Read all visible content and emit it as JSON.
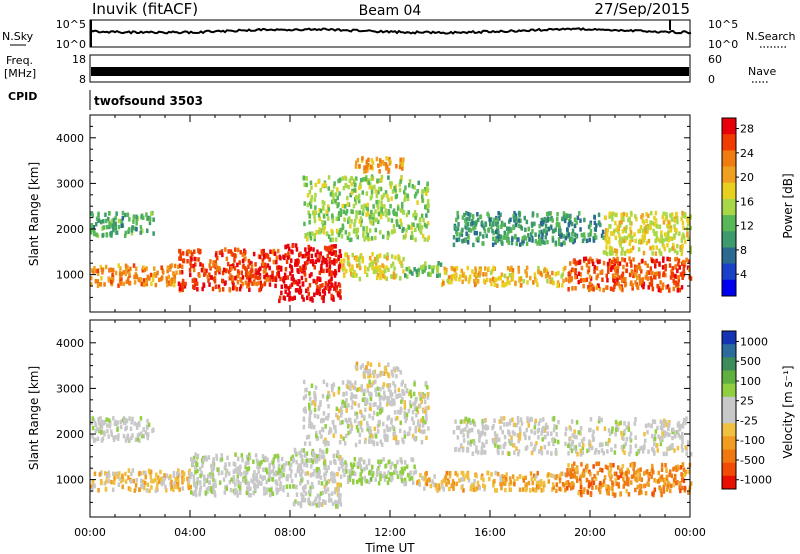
{
  "header": {
    "station": "Inuvik (fitACF)",
    "beam": "Beam 04",
    "date": "27/Sep/2015"
  },
  "panels": {
    "nsky": {
      "left_label": "N.Sky",
      "right_label": "N.Search",
      "left_ticks": [
        "10^5",
        "10^0"
      ],
      "right_ticks": [
        "10^5",
        "10^0"
      ]
    },
    "freq": {
      "left_label": "Freq.",
      "left_unit": "[MHz]",
      "right_label": "Nave",
      "left_ticks": [
        "18",
        "8"
      ],
      "right_ticks": [
        "60",
        "0"
      ]
    },
    "cpid": {
      "label": "CPID",
      "value": "twofsound 3503"
    }
  },
  "xaxis": {
    "label": "Time UT",
    "ticks": [
      "00:00",
      "04:00",
      "08:00",
      "12:00",
      "16:00",
      "20:00",
      "00:00"
    ]
  },
  "colorbars": {
    "power": {
      "title": "Power [dB]",
      "labels": [
        "28",
        "24",
        "20",
        "16",
        "12",
        "8",
        "4"
      ],
      "colors": [
        "#e8000b",
        "#f03c00",
        "#f07c10",
        "#f0a020",
        "#e8d020",
        "#a8d848",
        "#58b858",
        "#3c9a6c",
        "#2a6a90",
        "#1840c8",
        "#0000f0"
      ]
    },
    "velocity": {
      "title": "Velocity [m s⁻¹]",
      "labels": [
        "1000",
        "500",
        "100",
        "25",
        "-25",
        "-100",
        "-500",
        "-1000"
      ],
      "colors": [
        "#1434b4",
        "#2c6c9c",
        "#3c8c5c",
        "#60b040",
        "#90d040",
        "#c8c8c8",
        "#c8c8c8",
        "#f0c040",
        "#f09c20",
        "#f07810",
        "#f04c08",
        "#e81000"
      ]
    }
  },
  "chart_data": [
    {
      "type": "heatmap",
      "parameter": "power",
      "ylabel": "Slant Range [km]",
      "xlabel": "Time UT",
      "xlim": [
        "00:00",
        "24:00"
      ],
      "ylim": [
        180,
        4500
      ],
      "yticks": [
        1000,
        2000,
        3000,
        4000
      ],
      "zlim": [
        0,
        30
      ],
      "regions": [
        {
          "t0": 0.0,
          "t1": 3.5,
          "r0": 800,
          "r1": 1250,
          "value": 22
        },
        {
          "t0": 3.5,
          "t1": 7.5,
          "r0": 700,
          "r1": 1600,
          "value": 26
        },
        {
          "t0": 7.5,
          "t1": 10.0,
          "r0": 450,
          "r1": 1700,
          "value": 29
        },
        {
          "t0": 10.0,
          "t1": 12.5,
          "r0": 950,
          "r1": 1500,
          "value": 17
        },
        {
          "t0": 12.5,
          "t1": 14.0,
          "r0": 1000,
          "r1": 1300,
          "value": 13
        },
        {
          "t0": 14.0,
          "t1": 19.0,
          "r0": 800,
          "r1": 1200,
          "value": 19
        },
        {
          "t0": 19.0,
          "t1": 24.0,
          "r0": 700,
          "r1": 1400,
          "value": 25
        },
        {
          "t0": 0.0,
          "t1": 2.5,
          "r0": 1900,
          "r1": 2400,
          "value": 11
        },
        {
          "t0": 8.5,
          "t1": 13.5,
          "r0": 1800,
          "r1": 3200,
          "value": 14
        },
        {
          "t0": 10.5,
          "t1": 12.5,
          "r0": 3300,
          "r1": 3600,
          "value": 21
        },
        {
          "t0": 14.5,
          "t1": 20.5,
          "r0": 1700,
          "r1": 2400,
          "value": 10
        },
        {
          "t0": 20.5,
          "t1": 24.0,
          "r0": 1500,
          "r1": 2400,
          "value": 17
        }
      ]
    },
    {
      "type": "heatmap",
      "parameter": "velocity",
      "ylabel": "Slant Range [km]",
      "xlabel": "Time UT",
      "xlim": [
        "00:00",
        "24:00"
      ],
      "ylim": [
        180,
        4500
      ],
      "yticks": [
        1000,
        2000,
        3000,
        4000
      ],
      "zlim": [
        -1200,
        1200
      ],
      "regions": [
        {
          "t0": 0.0,
          "t1": 4.0,
          "r0": 800,
          "r1": 1250,
          "value": -300
        },
        {
          "t0": 4.0,
          "t1": 8.0,
          "r0": 700,
          "r1": 1600,
          "value": 80
        },
        {
          "t0": 8.0,
          "t1": 10.0,
          "r0": 450,
          "r1": 1700,
          "value": 10
        },
        {
          "t0": 10.0,
          "t1": 13.0,
          "r0": 950,
          "r1": 1500,
          "value": 150
        },
        {
          "t0": 13.0,
          "t1": 19.0,
          "r0": 800,
          "r1": 1200,
          "value": -400
        },
        {
          "t0": 19.0,
          "t1": 24.0,
          "r0": 700,
          "r1": 1400,
          "value": -600
        },
        {
          "t0": 0.0,
          "t1": 2.5,
          "r0": 1900,
          "r1": 2400,
          "value": 60
        },
        {
          "t0": 8.5,
          "t1": 13.5,
          "r0": 1800,
          "r1": 3200,
          "value": 5
        },
        {
          "t0": 10.5,
          "t1": 12.5,
          "r0": 3300,
          "r1": 3600,
          "value": -150
        },
        {
          "t0": 14.5,
          "t1": 24.0,
          "r0": 1600,
          "r1": 2400,
          "value": 0
        }
      ]
    }
  ]
}
